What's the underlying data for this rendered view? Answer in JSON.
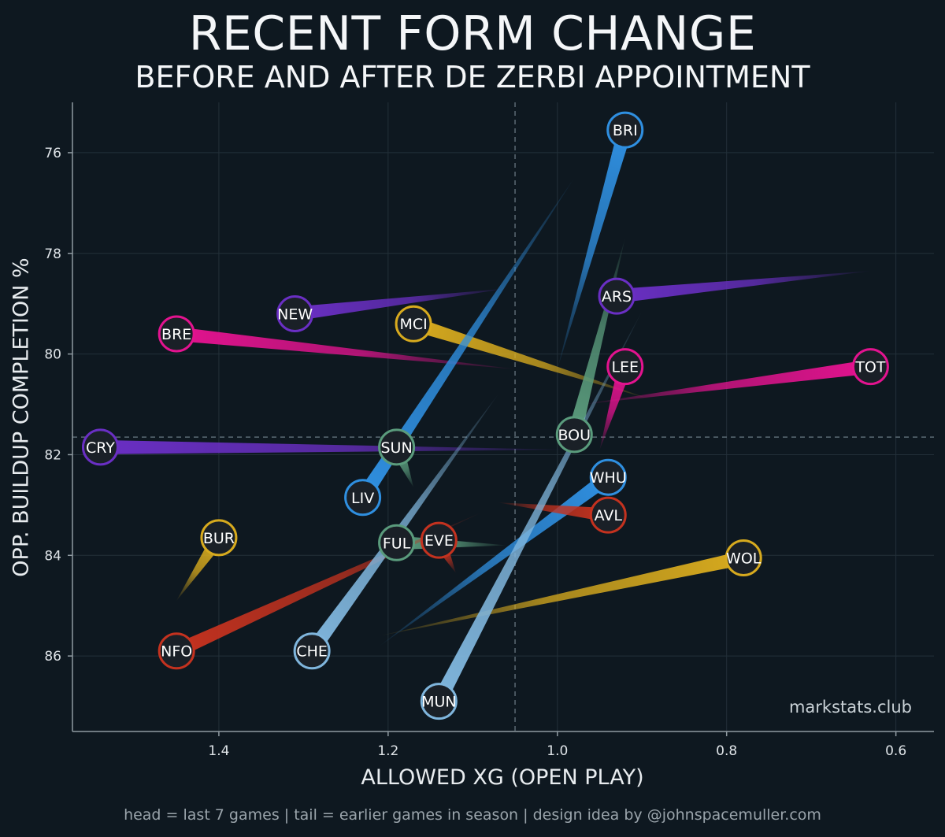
{
  "title": "RECENT FORM CHANGE",
  "subtitle": "BEFORE AND AFTER DE ZERBI APPOINTMENT",
  "watermark": "markstats.club",
  "footnote": "head = last 7 games | tail = earlier games in season | design idea by @johnspacemuller.com",
  "chart_data": {
    "type": "scatter",
    "xlabel": "ALLOWED XG (OPEN PLAY)",
    "ylabel": "OPP. BUILDUP COMPLETION %",
    "x_reversed": true,
    "y_reversed": true,
    "xlim": [
      1.573,
      0.555
    ],
    "ylim": [
      75.0,
      87.5
    ],
    "x_ticks": [
      1.4,
      1.2,
      1.0,
      0.8,
      0.6
    ],
    "x_tick_labels": [
      "1.4",
      "1.2",
      "1.0",
      "0.8",
      "0.6"
    ],
    "y_ticks": [
      76,
      78,
      80,
      82,
      84,
      86
    ],
    "y_tick_labels": [
      "76",
      "78",
      "80",
      "82",
      "84",
      "86"
    ],
    "reference_lines": {
      "x": 1.05,
      "y": 81.65
    },
    "grid": true,
    "teams": [
      {
        "label": "BRI",
        "color": "#2f8fe0",
        "head": {
          "x": 0.92,
          "y": 75.55
        },
        "tail": {
          "x": 1.0,
          "y": 80.3
        }
      },
      {
        "label": "ARS",
        "color": "#6a2fc4",
        "head": {
          "x": 0.93,
          "y": 78.85
        },
        "tail": {
          "x": 0.63,
          "y": 78.35
        }
      },
      {
        "label": "NEW",
        "color": "#6a2fc4",
        "head": {
          "x": 1.31,
          "y": 79.2
        },
        "tail": {
          "x": 1.06,
          "y": 78.7
        }
      },
      {
        "label": "MCI",
        "color": "#d7aa1e",
        "head": {
          "x": 1.17,
          "y": 79.4
        },
        "tail": {
          "x": 0.89,
          "y": 80.9
        }
      },
      {
        "label": "BRE",
        "color": "#e3138f",
        "head": {
          "x": 1.45,
          "y": 79.6
        },
        "tail": {
          "x": 1.05,
          "y": 80.3
        }
      },
      {
        "label": "LEE",
        "color": "#e3138f",
        "head": {
          "x": 0.92,
          "y": 80.25
        },
        "tail": {
          "x": 0.95,
          "y": 81.9
        }
      },
      {
        "label": "TOT",
        "color": "#e3138f",
        "head": {
          "x": 0.63,
          "y": 80.25
        },
        "tail": {
          "x": 0.97,
          "y": 81.0
        }
      },
      {
        "label": "CRY",
        "color": "#6a2fc4",
        "head": {
          "x": 1.54,
          "y": 81.85
        },
        "tail": {
          "x": 0.99,
          "y": 81.9
        }
      },
      {
        "label": "SUN",
        "color": "#5a9b7c",
        "head": {
          "x": 1.19,
          "y": 81.85
        },
        "tail": {
          "x": 1.17,
          "y": 82.65
        }
      },
      {
        "label": "BOU",
        "color": "#5a9b7c",
        "head": {
          "x": 0.98,
          "y": 81.6
        },
        "tail": {
          "x": 0.92,
          "y": 77.7
        }
      },
      {
        "label": "LIV",
        "color": "#2f8fe0",
        "head": {
          "x": 1.23,
          "y": 82.85
        },
        "tail": {
          "x": 0.98,
          "y": 76.5
        }
      },
      {
        "label": "WHU",
        "color": "#2f8fe0",
        "head": {
          "x": 0.94,
          "y": 82.45
        },
        "tail": {
          "x": 1.21,
          "y": 85.8
        }
      },
      {
        "label": "AVL",
        "color": "#c4321f",
        "head": {
          "x": 0.94,
          "y": 83.2
        },
        "tail": {
          "x": 1.07,
          "y": 82.95
        }
      },
      {
        "label": "BUR",
        "color": "#d7aa1e",
        "head": {
          "x": 1.4,
          "y": 83.65
        },
        "tail": {
          "x": 1.45,
          "y": 84.9
        }
      },
      {
        "label": "FUL",
        "color": "#5a9b7c",
        "head": {
          "x": 1.19,
          "y": 83.75
        },
        "tail": {
          "x": 1.06,
          "y": 83.8
        }
      },
      {
        "label": "EVE",
        "color": "#c4321f",
        "head": {
          "x": 1.14,
          "y": 83.7
        },
        "tail": {
          "x": 1.12,
          "y": 84.35
        }
      },
      {
        "label": "WOL",
        "color": "#d7aa1e",
        "head": {
          "x": 0.78,
          "y": 84.05
        },
        "tail": {
          "x": 1.21,
          "y": 85.6
        }
      },
      {
        "label": "NFO",
        "color": "#c4321f",
        "head": {
          "x": 1.45,
          "y": 85.9
        },
        "tail": {
          "x": 1.09,
          "y": 83.15
        }
      },
      {
        "label": "CHE",
        "color": "#7fb5dc",
        "head": {
          "x": 1.29,
          "y": 85.9
        },
        "tail": {
          "x": 1.07,
          "y": 80.8
        }
      },
      {
        "label": "MUN",
        "color": "#7fb5dc",
        "head": {
          "x": 1.14,
          "y": 86.9
        },
        "tail": {
          "x": 0.9,
          "y": 79.15
        }
      }
    ]
  }
}
